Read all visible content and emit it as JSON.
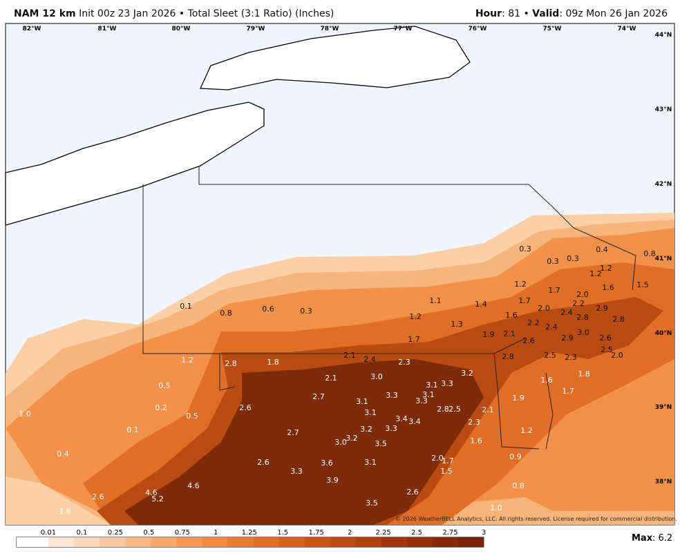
{
  "header": {
    "model": "NAM 12 km",
    "init": "Init 00z 23 Jan 2026 • Total Sleet (3:1 Ratio) (Inches)",
    "hour_label": "Hour",
    "hour": ": 81 • ",
    "valid_label": "Valid",
    "valid": ": 09z Mon 26 Jan 2026"
  },
  "longitudes": [
    "82°W",
    "81°W",
    "80°W",
    "79°W",
    "78°W",
    "77°W",
    "76°W",
    "75°W",
    "74°W"
  ],
  "latitudes": [
    "44°N",
    "43°N",
    "42°N",
    "41°N",
    "40°N",
    "39°N",
    "38°N"
  ],
  "map_labels": [
    "0.3",
    "0.3",
    "0.3",
    "0.4",
    "0.8",
    "1.2",
    "1.2",
    "1.6",
    "1.5",
    "1.2",
    "1.7",
    "1.7",
    "2.0",
    "2.2",
    "2.0",
    "2.4",
    "2.9",
    "2.8",
    "2.8",
    "1.1",
    "1.4",
    "1.6",
    "1.2",
    "1.3",
    "2.2",
    "2.4",
    "3.0",
    "1.9",
    "2.1",
    "2.9",
    "2.6",
    "2.6",
    "1.7",
    "2.5",
    "2.5",
    "2.3",
    "2.0",
    "2.8",
    "0.1",
    "0.8",
    "0.6",
    "0.3",
    "1.2",
    "2.8",
    "1.8",
    "2.1",
    "2.4",
    "2.3",
    "3.2",
    "3.0",
    "2.1",
    "3.1",
    "3.3",
    "3.1",
    "1.6",
    "1.8",
    "1.7",
    "1.9",
    "3.3",
    "2.7",
    "3.3",
    "3.1",
    "0.5",
    "1.0",
    "0.2",
    "2.6",
    "3.1",
    "2.8",
    "2.5",
    "2.1",
    "0.5",
    "3.4",
    "3.4",
    "2.3",
    "0.1",
    "3.3",
    "3.2",
    "2.7",
    "1.2",
    "3.2",
    "3.0",
    "1.6",
    "3.5",
    "0.4",
    "0.9",
    "2.0",
    "1.7",
    "2.6",
    "3.6",
    "3.1",
    "3.3",
    "1.5",
    "3.9",
    "4.6",
    "4.6",
    "5.2",
    "2.6",
    "0.8",
    "2.6",
    "3.5",
    "1.0",
    "1.6"
  ],
  "colorbar": {
    "ticks": [
      "0.01",
      "0.1",
      "0.25",
      "0.5",
      "0.75",
      "1",
      "1.25",
      "1.5",
      "1.75",
      "2",
      "2.25",
      "2.5",
      "2.75",
      "3"
    ]
  },
  "footer": {
    "max_label": "Max",
    "max": ": 6.2",
    "copyright": "© 2026 WeatherBELL Analytics, LLC. All rights reserved. License required for commercial distribution."
  }
}
